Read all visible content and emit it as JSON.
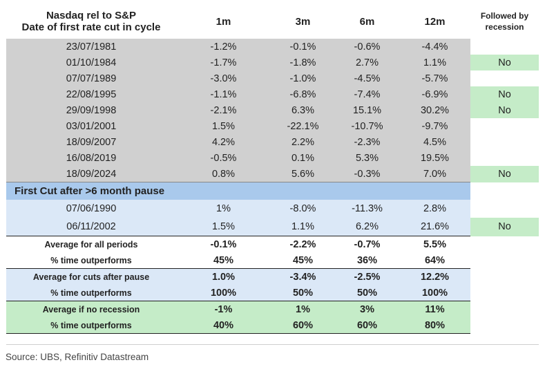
{
  "header": {
    "title_line1": "Nasdaq rel to S&P",
    "title_line2": "Date of first rate cut in cycle",
    "col_1m": "1m",
    "col_3m": "3m",
    "col_6m": "6m",
    "col_12m": "12m",
    "col_rec_line1": "Followed by",
    "col_rec_line2": "recession"
  },
  "rows": [
    {
      "date": "23/07/1981",
      "m1": "-1.2%",
      "m3": "-0.1%",
      "m6": "-0.6%",
      "m12": "-4.4%",
      "rec": ""
    },
    {
      "date": "01/10/1984",
      "m1": "-1.7%",
      "m3": "-1.8%",
      "m6": "2.7%",
      "m12": "1.1%",
      "rec": "No"
    },
    {
      "date": "07/07/1989",
      "m1": "-3.0%",
      "m3": "-1.0%",
      "m6": "-4.5%",
      "m12": "-5.7%",
      "rec": ""
    },
    {
      "date": "22/08/1995",
      "m1": "-1.1%",
      "m3": "-6.8%",
      "m6": "-7.4%",
      "m12": "-6.9%",
      "rec": "No"
    },
    {
      "date": "29/09/1998",
      "m1": "-2.1%",
      "m3": "6.3%",
      "m6": "15.1%",
      "m12": "30.2%",
      "rec": "No"
    },
    {
      "date": "03/01/2001",
      "m1": "1.5%",
      "m3": "-22.1%",
      "m6": "-10.7%",
      "m12": "-9.7%",
      "rec": ""
    },
    {
      "date": "18/09/2007",
      "m1": "4.2%",
      "m3": "2.2%",
      "m6": "-2.3%",
      "m12": "4.5%",
      "rec": ""
    },
    {
      "date": "16/08/2019",
      "m1": "-0.5%",
      "m3": "0.1%",
      "m6": "5.3%",
      "m12": "19.5%",
      "rec": ""
    },
    {
      "date": "18/09/2024",
      "m1": "0.8%",
      "m3": "5.6%",
      "m6": "-0.3%",
      "m12": "7.0%",
      "rec": "No"
    }
  ],
  "pause_section": {
    "title": "First Cut after >6 month pause",
    "rows": [
      {
        "date": "07/06/1990",
        "m1": "1%",
        "m3": "-8.0%",
        "m6": "-11.3%",
        "m12": "2.8%",
        "rec": ""
      },
      {
        "date": "06/11/2002",
        "m1": "1.5%",
        "m3": "1.1%",
        "m6": "6.2%",
        "m12": "21.6%",
        "rec": "No"
      }
    ]
  },
  "summary": {
    "all": {
      "avg_label": "Average for all periods",
      "avg": [
        "-0.1%",
        "-2.2%",
        "-0.7%",
        "5.5%"
      ],
      "pct_label": "% time outperforms",
      "pct": [
        "45%",
        "45%",
        "36%",
        "64%"
      ]
    },
    "pause": {
      "avg_label": "Average for cuts after pause",
      "avg": [
        "1.0%",
        "-3.4%",
        "-2.5%",
        "12.2%"
      ],
      "pct_label": "% time outperforms",
      "pct": [
        "100%",
        "50%",
        "50%",
        "100%"
      ]
    },
    "no_recession": {
      "avg_label": "Average if no recession",
      "avg": [
        "-1%",
        "1%",
        "3%",
        "11%"
      ],
      "pct_label": "% time outperforms",
      "pct": [
        "40%",
        "60%",
        "60%",
        "80%"
      ]
    }
  },
  "source": "Source: UBS, Refinitiv Datastream",
  "colors": {
    "grey_band": "#d0d0d0",
    "light_blue_band": "#dbe8f7",
    "blue_header": "#a9c9ec",
    "green_band": "#c5ecc8"
  }
}
